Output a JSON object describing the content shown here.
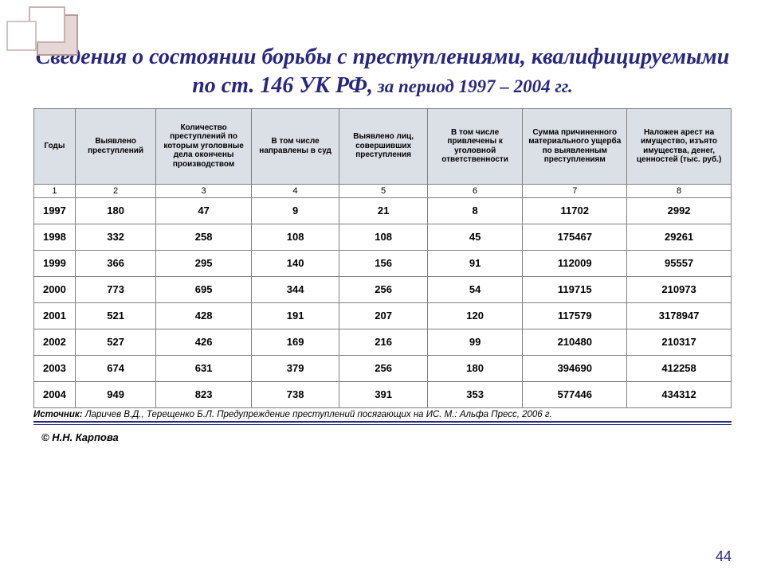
{
  "title_main": "Сведения о состоянии борьбы с преступлениями, квалифицируемыми по ст. 146 УК РФ,",
  "title_sub": " за период 1997 – 2004 гг.",
  "columns": [
    "Годы",
    "Выявлено преступлений",
    "Количество преступлений по которым уголовные дела окончены производством",
    "В том числе направлены в суд",
    "Выявлено лиц, совершивших преступления",
    "В том числе привлечены к уголовной ответственности",
    "Сумма причиненного материального ущерба по выявленным преступлениям",
    "Наложен арест на имущество, изъято имущества, денег, ценностей (тыс. руб.)"
  ],
  "col_nums": [
    "1",
    "2",
    "3",
    "4",
    "5",
    "6",
    "7",
    "8"
  ],
  "rows": [
    [
      "1997",
      "180",
      "47",
      "9",
      "21",
      "8",
      "11702",
      "2992"
    ],
    [
      "1998",
      "332",
      "258",
      "108",
      "108",
      "45",
      "175467",
      "29261"
    ],
    [
      "1999",
      "366",
      "295",
      "140",
      "156",
      "91",
      "112009",
      "95557"
    ],
    [
      "2000",
      "773",
      "695",
      "344",
      "256",
      "54",
      "119715",
      "210973"
    ],
    [
      "2001",
      "521",
      "428",
      "191",
      "207",
      "120",
      "117579",
      "3178947"
    ],
    [
      "2002",
      "527",
      "426",
      "169",
      "216",
      "99",
      "210480",
      "210317"
    ],
    [
      "2003",
      "674",
      "631",
      "379",
      "256",
      "180",
      "394690",
      "412258"
    ],
    [
      "2004",
      "949",
      "823",
      "738",
      "391",
      "353",
      "577446",
      "434312"
    ]
  ],
  "source_label": "Источник:",
  "source_text": " Ларичев В.Д., Терещенко Б.Л. Предупреждение преступлений посягающих на ИС. М.: Альфа Пресс, 2006 г.",
  "copyright": "© Н.Н. Карпова",
  "page_number": "44",
  "colors": {
    "title": "#282780",
    "header_bg": "#dbdfe6",
    "border": "#808080"
  }
}
